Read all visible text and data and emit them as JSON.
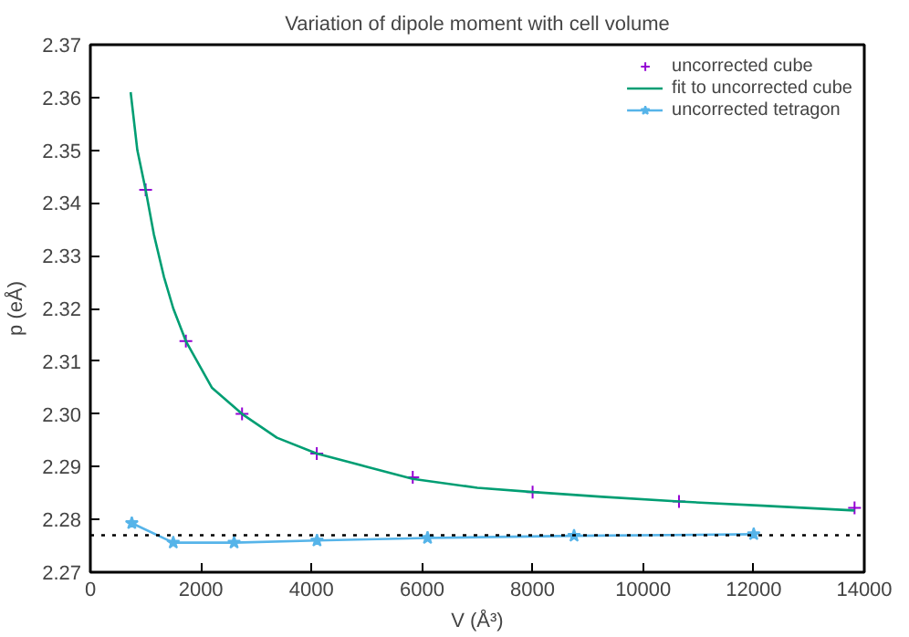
{
  "chart_data": {
    "type": "line",
    "title": "Variation of dipole moment with cell volume",
    "xlabel": "V (Å³)",
    "ylabel": "p (eÅ)",
    "xlim": [
      0,
      14000
    ],
    "ylim": [
      2.27,
      2.37
    ],
    "xticks": [
      0,
      2000,
      4000,
      6000,
      8000,
      10000,
      12000,
      14000
    ],
    "yticks": [
      2.27,
      2.28,
      2.29,
      {
        "value": 2.3,
        "label": "2.30"
      },
      2.31,
      2.32,
      2.33,
      2.34,
      2.35,
      2.36,
      2.37
    ],
    "grid": false,
    "legend": "top right",
    "series": [
      {
        "name": "uncorrected cube",
        "type": "scatter",
        "marker": "cross",
        "color": "#9400d3",
        "x": [
          1000,
          1728,
          2744,
          4096,
          5832,
          8000,
          10648,
          13824
        ],
        "values": [
          2.3425,
          2.3138,
          2.3,
          2.2925,
          2.288,
          2.2852,
          2.2834,
          2.2822
        ]
      },
      {
        "name": "fit to uncorrected cube",
        "marker": "none",
        "color": "#009e73",
        "x": [
          729,
          850,
          1000,
          1150,
          1331,
          1500,
          1728,
          2197,
          2744,
          3375,
          4096,
          5000,
          5832,
          7000,
          8000,
          9261,
          10648,
          12167,
          13824
        ],
        "values": [
          2.361,
          2.35,
          2.3425,
          2.334,
          2.326,
          2.32,
          2.3138,
          2.305,
          2.3,
          2.2955,
          2.2925,
          2.29,
          2.2877,
          2.286,
          2.2852,
          2.2843,
          2.2834,
          2.2826,
          2.2817
        ]
      },
      {
        "name": "uncorrected tetragon",
        "type": "line",
        "marker": "star",
        "color": "#56b4e9",
        "x": [
          750,
          1500,
          2600,
          4100,
          6100,
          8750,
          12000
        ],
        "values": [
          2.2793,
          2.2756,
          2.2756,
          2.276,
          2.2765,
          2.2769,
          2.2772
        ]
      }
    ],
    "ref_lines": [
      {
        "axis": "y",
        "value": 2.277,
        "color": "#000000",
        "line_style": "dotted"
      }
    ]
  }
}
